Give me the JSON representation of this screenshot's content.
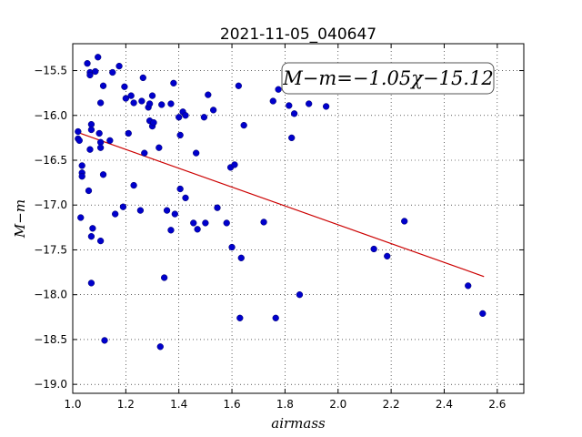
{
  "chart_data": {
    "type": "scatter",
    "title": "2021-11-05_040647",
    "xlabel": "airmass",
    "ylabel": "M−m",
    "xlim": [
      1.0,
      2.7
    ],
    "ylim": [
      -19.1,
      -15.2
    ],
    "x_ticks": [
      "1.0",
      "1.2",
      "1.4",
      "1.6",
      "1.8",
      "2.0",
      "2.2",
      "2.4",
      "2.6"
    ],
    "y_ticks": [
      "−15.5",
      "−16.0",
      "−16.5",
      "−17.0",
      "−17.5",
      "−18.0",
      "−18.5",
      "−19.0"
    ],
    "x_tick_values": [
      1.0,
      1.2,
      1.4,
      1.6,
      1.8,
      2.0,
      2.2,
      2.4,
      2.6
    ],
    "y_tick_values": [
      -15.5,
      -16.0,
      -16.5,
      -17.0,
      -17.5,
      -18.0,
      -18.5,
      -19.0
    ],
    "grid": true,
    "fit_annotation": "M−m=−1.05χ−15.12",
    "fit_line": {
      "slope": -1.05,
      "intercept": -15.12,
      "x_range": [
        1.02,
        2.55
      ],
      "color": "#cc0000"
    },
    "point_color": "#0000cc",
    "points": [
      [
        1.02,
        -16.18
      ],
      [
        1.02,
        -16.26
      ],
      [
        1.025,
        -16.28
      ],
      [
        1.03,
        -17.14
      ],
      [
        1.035,
        -16.56
      ],
      [
        1.035,
        -16.64
      ],
      [
        1.035,
        -16.68
      ],
      [
        1.055,
        -15.42
      ],
      [
        1.06,
        -16.84
      ],
      [
        1.065,
        -15.52
      ],
      [
        1.065,
        -15.55
      ],
      [
        1.065,
        -16.38
      ],
      [
        1.07,
        -16.1
      ],
      [
        1.07,
        -16.16
      ],
      [
        1.07,
        -17.35
      ],
      [
        1.07,
        -17.87
      ],
      [
        1.075,
        -17.26
      ],
      [
        1.085,
        -15.51
      ],
      [
        1.095,
        -15.35
      ],
      [
        1.1,
        -16.2
      ],
      [
        1.105,
        -15.86
      ],
      [
        1.105,
        -16.3
      ],
      [
        1.105,
        -16.36
      ],
      [
        1.105,
        -17.4
      ],
      [
        1.115,
        -15.67
      ],
      [
        1.115,
        -16.66
      ],
      [
        1.12,
        -18.51
      ],
      [
        1.14,
        -16.28
      ],
      [
        1.15,
        -15.52
      ],
      [
        1.16,
        -17.1
      ],
      [
        1.175,
        -15.45
      ],
      [
        1.19,
        -17.02
      ],
      [
        1.195,
        -15.68
      ],
      [
        1.2,
        -15.81
      ],
      [
        1.21,
        -16.2
      ],
      [
        1.22,
        -15.78
      ],
      [
        1.23,
        -15.86
      ],
      [
        1.23,
        -16.78
      ],
      [
        1.255,
        -17.06
      ],
      [
        1.26,
        -15.84
      ],
      [
        1.265,
        -15.58
      ],
      [
        1.27,
        -16.42
      ],
      [
        1.285,
        -15.91
      ],
      [
        1.29,
        -15.87
      ],
      [
        1.29,
        -16.06
      ],
      [
        1.3,
        -15.78
      ],
      [
        1.3,
        -16.12
      ],
      [
        1.305,
        -16.08
      ],
      [
        1.325,
        -16.36
      ],
      [
        1.33,
        -18.58
      ],
      [
        1.335,
        -15.88
      ],
      [
        1.345,
        -17.81
      ],
      [
        1.355,
        -17.06
      ],
      [
        1.37,
        -15.87
      ],
      [
        1.37,
        -17.28
      ],
      [
        1.38,
        -15.64
      ],
      [
        1.385,
        -17.1
      ],
      [
        1.4,
        -16.02
      ],
      [
        1.405,
        -16.22
      ],
      [
        1.405,
        -16.82
      ],
      [
        1.415,
        -15.96
      ],
      [
        1.425,
        -16.0
      ],
      [
        1.425,
        -16.92
      ],
      [
        1.455,
        -17.2
      ],
      [
        1.465,
        -16.42
      ],
      [
        1.47,
        -17.27
      ],
      [
        1.495,
        -16.02
      ],
      [
        1.5,
        -17.2
      ],
      [
        1.51,
        -15.77
      ],
      [
        1.53,
        -15.94
      ],
      [
        1.545,
        -17.03
      ],
      [
        1.58,
        -17.2
      ],
      [
        1.595,
        -16.58
      ],
      [
        1.6,
        -17.47
      ],
      [
        1.61,
        -16.55
      ],
      [
        1.625,
        -15.67
      ],
      [
        1.63,
        -18.26
      ],
      [
        1.635,
        -17.59
      ],
      [
        1.645,
        -16.11
      ],
      [
        1.72,
        -17.19
      ],
      [
        1.755,
        -15.84
      ],
      [
        1.765,
        -18.26
      ],
      [
        1.775,
        -15.71
      ],
      [
        1.815,
        -15.89
      ],
      [
        1.825,
        -16.25
      ],
      [
        1.835,
        -15.98
      ],
      [
        1.855,
        -18.0
      ],
      [
        1.89,
        -15.87
      ],
      [
        1.955,
        -15.9
      ],
      [
        2.135,
        -17.49
      ],
      [
        2.185,
        -17.57
      ],
      [
        2.25,
        -17.18
      ],
      [
        2.49,
        -17.9
      ],
      [
        2.545,
        -18.21
      ]
    ]
  }
}
